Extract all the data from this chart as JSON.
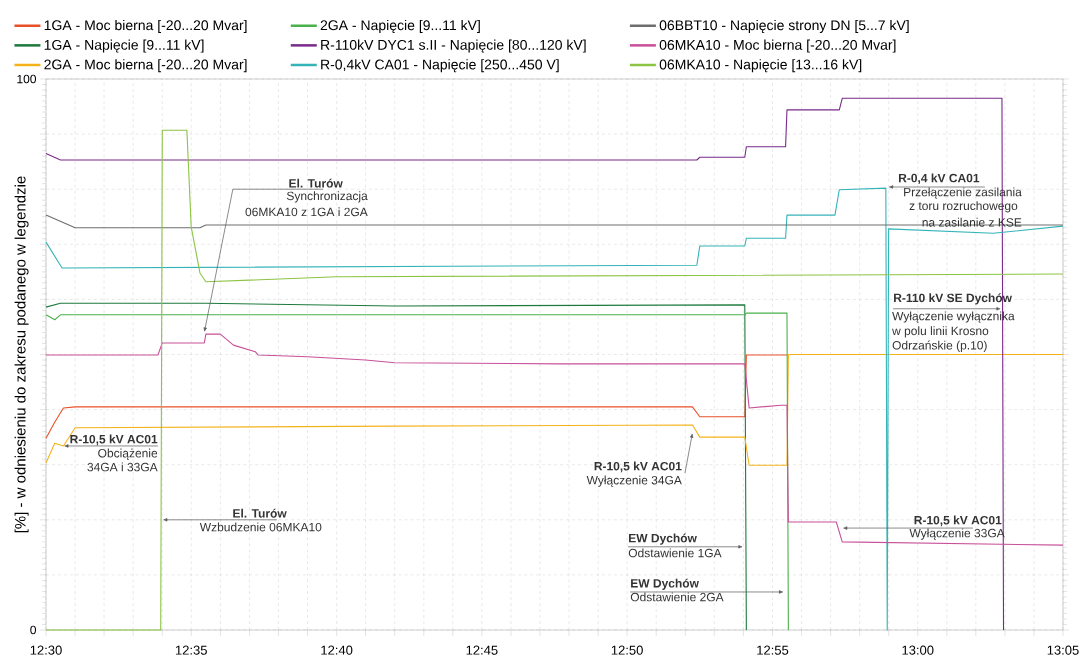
{
  "chart_data": {
    "type": "line",
    "ylabel": "[%] - w odniesieniu do zakresu podanego w legendzie",
    "xlim": [
      12.5,
      13.0833
    ],
    "ylim": [
      0,
      100
    ],
    "xticks": [
      {
        "value": 12.5,
        "label": "12:30"
      },
      {
        "value": 12.5167,
        "label": null
      },
      {
        "value": 12.5333,
        "label": null
      },
      {
        "value": 12.55,
        "label": null
      },
      {
        "value": 12.5667,
        "label": null
      },
      {
        "value": 12.5833,
        "label": "12:35"
      },
      {
        "value": 12.6,
        "label": null
      },
      {
        "value": 12.6167,
        "label": null
      },
      {
        "value": 12.6333,
        "label": null
      },
      {
        "value": 12.65,
        "label": null
      },
      {
        "value": 12.6667,
        "label": "12:40"
      },
      {
        "value": 12.6833,
        "label": null
      },
      {
        "value": 12.7,
        "label": null
      },
      {
        "value": 12.7167,
        "label": null
      },
      {
        "value": 12.7333,
        "label": null
      },
      {
        "value": 12.75,
        "label": "12:45"
      },
      {
        "value": 12.7667,
        "label": null
      },
      {
        "value": 12.7833,
        "label": null
      },
      {
        "value": 12.8,
        "label": null
      },
      {
        "value": 12.8167,
        "label": null
      },
      {
        "value": 12.8333,
        "label": "12:50"
      },
      {
        "value": 12.85,
        "label": null
      },
      {
        "value": 12.8667,
        "label": null
      },
      {
        "value": 12.8833,
        "label": null
      },
      {
        "value": 12.9,
        "label": null
      },
      {
        "value": 12.9167,
        "label": "12:55"
      },
      {
        "value": 12.9333,
        "label": null
      },
      {
        "value": 12.95,
        "label": null
      },
      {
        "value": 12.9667,
        "label": null
      },
      {
        "value": 12.9833,
        "label": null
      },
      {
        "value": 13.0,
        "label": "13:00"
      },
      {
        "value": 13.0167,
        "label": null
      },
      {
        "value": 13.0333,
        "label": null
      },
      {
        "value": 13.05,
        "label": null
      },
      {
        "value": 13.0667,
        "label": null
      },
      {
        "value": 13.0833,
        "label": "13:05"
      }
    ],
    "yticks": [
      0,
      {
        "value": 10,
        "label": null
      },
      {
        "value": 20,
        "label": null
      },
      {
        "value": 30,
        "label": null
      },
      {
        "value": 40,
        "label": null
      },
      {
        "value": 50,
        "label": null
      },
      {
        "value": 60,
        "label": null
      },
      {
        "value": 70,
        "label": null
      },
      {
        "value": 80,
        "label": null
      },
      {
        "value": 90,
        "label": null
      },
      100
    ],
    "grid": true,
    "legend": "top",
    "line_style": "solid",
    "series": [
      {
        "name": "1GA - Moc bierna [-20...20 Mvar]",
        "color": "#e8512a",
        "x": [
          12.5,
          12.505,
          12.51,
          12.5167,
          12.8708,
          12.875,
          12.9008,
          12.9017,
          12.925
        ],
        "values": [
          34.8,
          37.7,
          40.3,
          40.5,
          40.5,
          38.7,
          38.7,
          49.9,
          49.9
        ]
      },
      {
        "name": "1GA - Napięcie [9...11 kV]",
        "color": "#1e7a3c",
        "x": [
          12.5,
          12.5083,
          12.5917,
          12.7,
          12.9008,
          12.9017
        ],
        "values": [
          58.6,
          59.3,
          59.3,
          58.8,
          59.0,
          0
        ]
      },
      {
        "name": "2GA - Moc bierna [-20...20 Mvar]",
        "color": "#f5b31a",
        "x": [
          12.5,
          12.505,
          12.51,
          12.5167,
          12.7,
          12.8708,
          12.875,
          12.9008,
          12.9033,
          12.925,
          12.9258,
          13.0833
        ],
        "values": [
          30.3,
          33.9,
          33.4,
          36.7,
          37.0,
          37.2,
          35.0,
          35.0,
          29.9,
          29.9,
          50,
          50
        ]
      },
      {
        "name": "2GA - Napięcie [9...11 kV]",
        "color": "#4cb04c",
        "x": [
          12.5,
          12.505,
          12.5083,
          12.9008,
          12.9017,
          12.925,
          12.9258
        ],
        "values": [
          57.2,
          56.3,
          57.2,
          57.2,
          57.5,
          57.5,
          0
        ]
      },
      {
        "name": "R-110kV DYC1 s.II - Napięcie [80...120 kV]",
        "color": "#7a2a8a",
        "x": [
          12.5,
          12.5083,
          12.8733,
          12.875,
          12.9008,
          12.9017,
          12.9242,
          12.925,
          12.955,
          12.9567,
          13.0483,
          13.0492
        ],
        "values": [
          86.5,
          85.3,
          85.3,
          85.8,
          85.8,
          87.7,
          87.7,
          94.4,
          94.4,
          96.5,
          96.5,
          0
        ]
      },
      {
        "name": "R-0,4kV CA01 - Napięcie [250...450 V]",
        "color": "#34b4b8",
        "x": [
          12.5,
          12.5092,
          12.8733,
          12.875,
          12.9008,
          12.9017,
          12.9242,
          12.925,
          12.9525,
          12.955,
          12.9817,
          12.9825,
          12.9833,
          13.0433,
          13.0833
        ],
        "values": [
          70.4,
          65.7,
          66.2,
          69.7,
          69.7,
          71.1,
          71.1,
          75.3,
          75.3,
          79.9,
          80.2,
          0,
          72.8,
          72.0,
          73.3
        ]
      },
      {
        "name": "06BBT10 - Napięcie strony DN [5...7 kV]",
        "color": "#6e6e6e",
        "x": [
          12.5,
          12.5167,
          12.5883,
          12.5917,
          13.0833
        ],
        "values": [
          75.3,
          73.0,
          73.0,
          73.5,
          73.5
        ]
      },
      {
        "name": "06MKA10 - Moc bierna [-20...20 Mvar]",
        "color": "#c8509a",
        "x": [
          12.5,
          12.5642,
          12.5667,
          12.5908,
          12.5917,
          12.6,
          12.6075,
          12.62,
          12.6217,
          12.65,
          12.6833,
          12.7,
          12.795,
          12.9008,
          12.9033,
          12.9217,
          12.925,
          12.9258,
          12.9533,
          12.9567,
          13.0833
        ],
        "values": [
          49.9,
          49.9,
          52.1,
          52.1,
          53.7,
          53.7,
          51.7,
          50.5,
          49.9,
          49.6,
          49.0,
          48.5,
          48.3,
          48.3,
          40.3,
          40.8,
          40.8,
          19.6,
          19.6,
          16.0,
          15.4
        ]
      },
      {
        "name": "06MKA10 - Napięcie [13...16 kV]",
        "color": "#8cc443",
        "x": [
          12.5,
          12.5658,
          12.5667,
          12.5808,
          12.5833,
          12.5883,
          12.5917,
          12.6667,
          13.0833
        ],
        "values": [
          0,
          0,
          90.7,
          90.7,
          73.1,
          64.8,
          63.2,
          64.1,
          64.6
        ]
      }
    ],
    "annotations": [
      {
        "text": "R-10,5 kV AC01",
        "x": 12.51,
        "y": 33.4
      },
      "Obciążenie",
      "34GA i 33GA",
      {
        "text": "El. Turów",
        "x": 12.5908,
        "y": 54
      },
      "Synchronizacja",
      "06MKA10 z 1GA i 2GA",
      {
        "text": "El. Turów",
        "x": 12.5667,
        "y": 20
      },
      "Wzbudzenie 06MKA10",
      {
        "text": "R-10,5 kV AC01",
        "x": 12.8708,
        "y": 35.8
      },
      "Wyłączenie 34GA",
      {
        "text": "EW Dychów",
        "x": 12.9,
        "y": 15.1
      },
      "Odstawienie 1GA",
      {
        "text": "EW Dychów",
        "x": 12.9233,
        "y": 6.9
      },
      "Odstawienie 2GA",
      {
        "text": "R-0,4 kV CA01",
        "x": 12.983,
        "y": 80.4
      },
      "Przełączenie zasilania",
      "z toru rozruchowego",
      "na zasilanie z KSE",
      {
        "text": "R-110 kV SE Dychów",
        "x": 13.048,
        "y": 58.3
      },
      "Wyłączenie wyłącznika",
      "w polu linii Krosno",
      "Odrzańskie (p.10)",
      {
        "text": "R-10,5 kV AC01",
        "x": 12.9567,
        "y": 18.5
      },
      "Wyłączenie 33GA"
    ]
  }
}
